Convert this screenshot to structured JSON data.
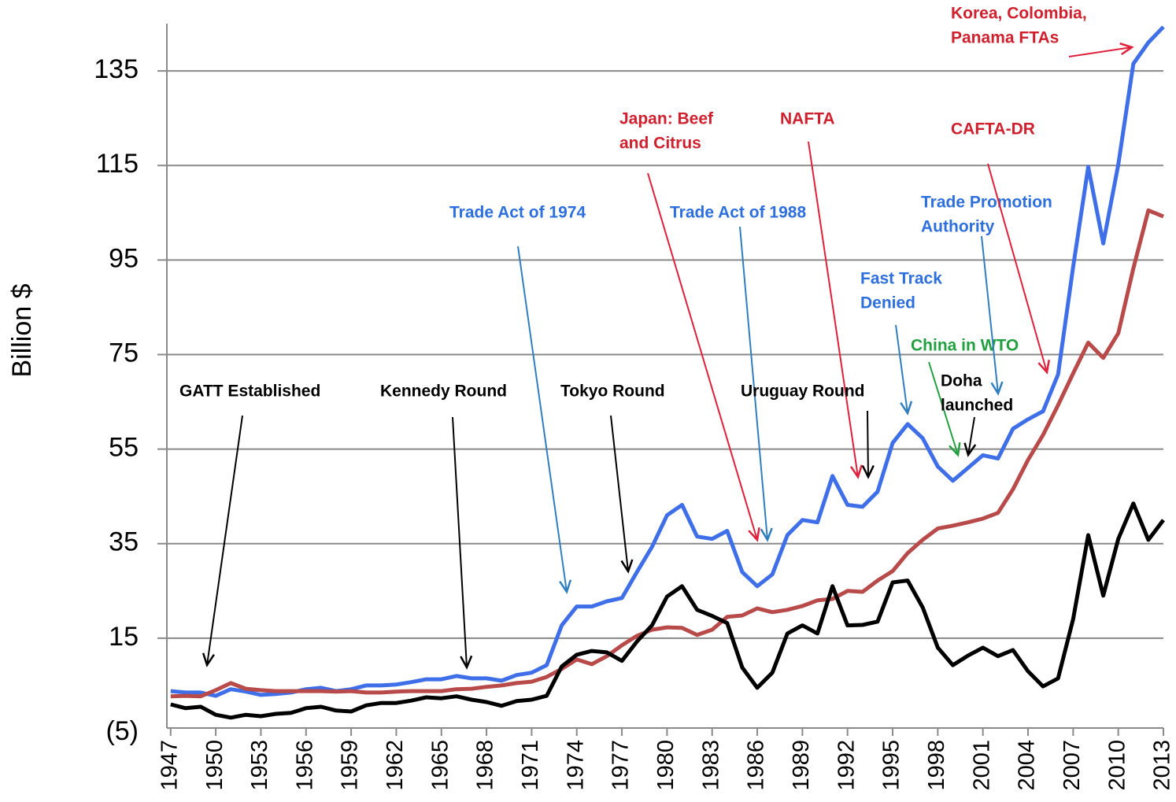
{
  "chart_data": {
    "type": "line",
    "y_label": "Billion $",
    "x": [
      1947,
      1948,
      1949,
      1950,
      1951,
      1952,
      1953,
      1954,
      1955,
      1956,
      1957,
      1958,
      1959,
      1960,
      1961,
      1962,
      1963,
      1964,
      1965,
      1966,
      1967,
      1968,
      1969,
      1970,
      1971,
      1972,
      1973,
      1974,
      1975,
      1976,
      1977,
      1978,
      1979,
      1980,
      1981,
      1982,
      1983,
      1984,
      1985,
      1986,
      1987,
      1988,
      1989,
      1990,
      1991,
      1992,
      1993,
      1994,
      1995,
      1996,
      1997,
      1998,
      1999,
      2000,
      2001,
      2002,
      2003,
      2004,
      2005,
      2006,
      2007,
      2008,
      2009,
      2010,
      2011,
      2012,
      2013
    ],
    "xlim": [
      1946.75,
      2013
    ],
    "xticks": [
      1947,
      1950,
      1953,
      1956,
      1959,
      1962,
      1965,
      1968,
      1971,
      1974,
      1977,
      1980,
      1983,
      1986,
      1989,
      1992,
      1995,
      1998,
      2001,
      2004,
      2007,
      2010,
      2013
    ],
    "ylim": [
      -5,
      145
    ],
    "yticks": [
      {
        "value": -5,
        "label": "(5)"
      },
      15,
      35,
      55,
      75,
      95,
      115,
      135
    ],
    "grid": true,
    "series": [
      {
        "color": "#3f6fe8",
        "values": [
          3.8,
          3.5,
          3.5,
          2.8,
          4.2,
          3.7,
          3.0,
          3.2,
          3.5,
          4.2,
          4.5,
          3.8,
          4.2,
          5,
          5,
          5.2,
          5.7,
          6.3,
          6.3,
          7,
          6.5,
          6.5,
          6,
          7.2,
          7.7,
          9.3,
          17.7,
          21.7,
          21.7,
          22.8,
          23.5,
          29,
          34.3,
          41,
          43.2,
          36.5,
          36,
          37.7,
          29,
          26,
          28.5,
          36.8,
          40,
          39.5,
          49.3,
          43.2,
          42.8,
          46,
          56.3,
          60.3,
          57.3,
          51.3,
          48.3,
          51,
          53.7,
          53,
          59.3,
          61.3,
          63,
          70.8,
          93.5,
          114.7,
          98.5,
          115.2,
          136.5,
          141,
          144.3
        ]
      },
      {
        "color": "#b84a4a",
        "values": [
          2.7,
          2.8,
          2.7,
          4,
          5.5,
          4.3,
          4,
          3.8,
          3.8,
          3.8,
          3.8,
          3.7,
          3.8,
          3.5,
          3.5,
          3.7,
          3.8,
          3.8,
          3.8,
          4.2,
          4.3,
          4.7,
          5,
          5.5,
          5.8,
          6.8,
          8.5,
          10.5,
          9.5,
          11.2,
          13.5,
          15.5,
          16.8,
          17.3,
          17.2,
          15.7,
          16.8,
          19.5,
          19.8,
          21.3,
          20.5,
          21,
          21.8,
          23,
          23.3,
          25,
          24.8,
          27.2,
          29.2,
          33,
          35.8,
          38.2,
          38.8,
          39.5,
          40.3,
          41.5,
          46.5,
          52.7,
          58,
          64.3,
          71,
          77.5,
          74.3,
          79.5,
          93.2,
          105.5,
          104.2
        ]
      },
      {
        "color": "#000000",
        "values": [
          1,
          0.2,
          0.5,
          -1.2,
          -1.8,
          -1.2,
          -1.5,
          -1,
          -0.8,
          0.2,
          0.5,
          -0.3,
          -0.5,
          0.8,
          1.3,
          1.3,
          1.8,
          2.5,
          2.3,
          2.7,
          2,
          1.5,
          0.7,
          1.7,
          2,
          2.8,
          9,
          11.5,
          12.3,
          12,
          10.2,
          14.3,
          17.7,
          23.8,
          26,
          21,
          19.7,
          18.2,
          8.8,
          4.5,
          7.7,
          16,
          17.7,
          16,
          26,
          17.7,
          17.8,
          18.5,
          26.8,
          27.2,
          21.5,
          13,
          9.3,
          11.3,
          13,
          11.2,
          12.5,
          8,
          4.8,
          6.5,
          19,
          36.8,
          24,
          36,
          43.5,
          35.8,
          40
        ]
      }
    ],
    "annotations": [
      {
        "lines": [
          "GATT Established"
        ],
        "color": "#000000"
      },
      {
        "lines": [
          "Kennedy Round"
        ],
        "color": "#000000"
      },
      {
        "lines": [
          "Tokyo Round"
        ],
        "color": "#000000"
      },
      {
        "lines": [
          "Trade Act of 1974"
        ],
        "color": "#2e6fde"
      },
      {
        "lines": [
          "Japan:  Beef",
          "and Citrus"
        ],
        "color": "#d0202e"
      },
      {
        "lines": [
          "Trade Act of 1988"
        ],
        "color": "#2e6fde"
      },
      {
        "lines": [
          "NAFTA"
        ],
        "color": "#d0202e"
      },
      {
        "lines": [
          "Uruguay Round"
        ],
        "color": "#000000"
      },
      {
        "lines": [
          "Fast Track",
          "Denied"
        ],
        "color": "#2e6fde"
      },
      {
        "lines": [
          "China in WTO"
        ],
        "color": "#22a040"
      },
      {
        "lines": [
          "Doha",
          "launched"
        ],
        "color": "#000000"
      },
      {
        "lines": [
          "Trade Promotion",
          "Authority"
        ],
        "color": "#2e6fde"
      },
      {
        "lines": [
          "CAFTA-DR"
        ],
        "color": "#d0202e"
      },
      {
        "lines": [
          "Korea, Colombia,",
          "Panama FTAs"
        ],
        "color": "#d0202e"
      }
    ]
  }
}
